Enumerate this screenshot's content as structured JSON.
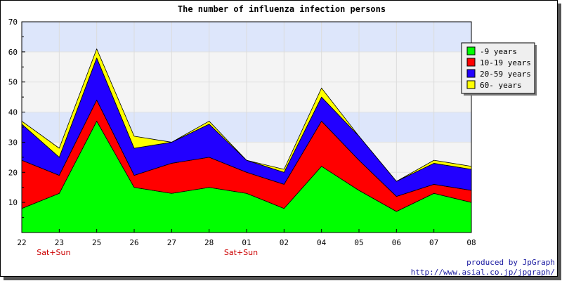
{
  "chart_data": {
    "type": "area",
    "stacked": true,
    "title": "The number of influenza infection persons",
    "xlabel": "",
    "ylabel": "",
    "ylim": [
      0,
      70
    ],
    "yticks": [
      10,
      20,
      30,
      40,
      50,
      60,
      70
    ],
    "categories": [
      "22",
      "23",
      "25",
      "26",
      "27",
      "28",
      "01",
      "02",
      "04",
      "05",
      "06",
      "07",
      "08"
    ],
    "weekend_label": "Sat+Sun",
    "weekend_categories": [
      "23",
      "01"
    ],
    "series": [
      {
        "name": "-9 years",
        "color": "#00ff00",
        "values": [
          8,
          13,
          37,
          15,
          13,
          15,
          13,
          8,
          22,
          14,
          7,
          13,
          10
        ]
      },
      {
        "name": "10-19 years",
        "color": "#ff0000",
        "values": [
          16,
          6,
          7,
          4,
          10,
          10,
          7,
          8,
          15,
          10,
          5,
          3,
          4
        ]
      },
      {
        "name": "20-59 years",
        "color": "#2200ff",
        "values": [
          12,
          6,
          14,
          9,
          7,
          11,
          4,
          4,
          8,
          8,
          5,
          7,
          7
        ]
      },
      {
        "name": "60- years",
        "color": "#ffff00",
        "values": [
          1,
          3,
          3,
          4,
          0,
          1,
          0,
          1,
          3,
          0,
          0,
          1,
          1
        ]
      }
    ],
    "bands": {
      "light": "#f4f4f4",
      "blue": "#dde6fb"
    },
    "grid": true,
    "legend_position": "right"
  },
  "credits": {
    "line1": "produced by JpGraph",
    "line2": "http://www.asial.co.jp/jpgraph/"
  }
}
